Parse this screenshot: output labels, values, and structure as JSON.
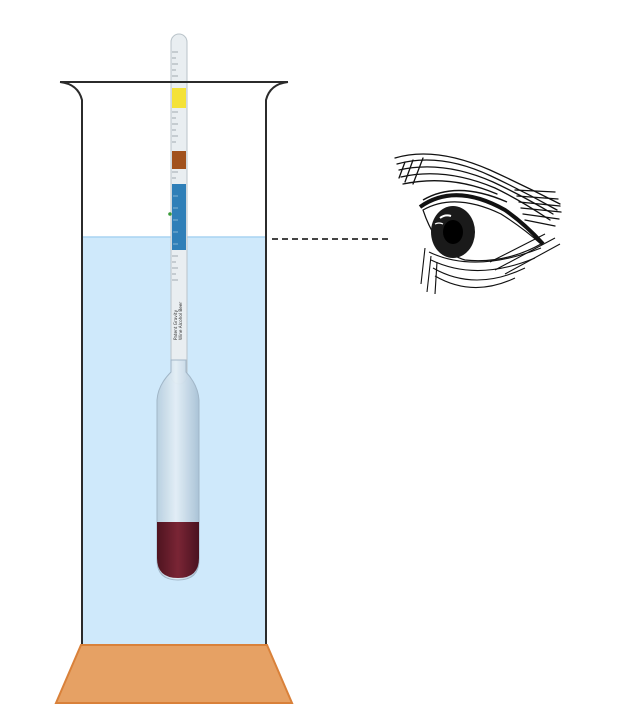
{
  "diagram": {
    "hydrometer_text": [
      "Patent Gravity",
      "Wine Alcohol Beer"
    ],
    "colors": {
      "liquid": "#cfe9fb",
      "liquid_edge": "#a9d4f2",
      "cylinder_wall": "#2b2b2b",
      "base_fill": "#e6a164",
      "base_edge": "#d9813a",
      "stem": "#e9eef1",
      "band_yellow": "#f4e238",
      "band_brown": "#a2521d",
      "band_blue": "#2f7fb8",
      "bulb": "#c9dbe9",
      "ballast": "#6a1e2c",
      "sight_line": "#444444"
    },
    "icons": [
      "eye-icon"
    ]
  }
}
